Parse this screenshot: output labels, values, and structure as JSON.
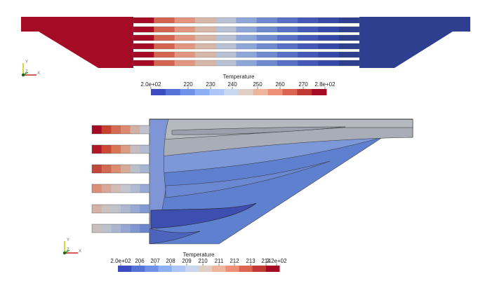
{
  "top_view": {
    "legend": {
      "title": "Temperature",
      "ticks": [
        "2.0e+02",
        "220",
        "230",
        "240",
        "250",
        "260",
        "270",
        "2.8e+02"
      ]
    },
    "axes": {
      "y": "Y",
      "z": "Z",
      "x": "X"
    }
  },
  "bottom_view": {
    "legend": {
      "title": "Temperature",
      "ticks": [
        "2.0e+02",
        "206",
        "207",
        "208",
        "209",
        "210",
        "211",
        "212",
        "213",
        "214",
        "2.2e+02"
      ]
    },
    "axes": {
      "y": "Y",
      "z": "Z",
      "x": "X"
    }
  },
  "colors": {
    "hot": "#a50b24",
    "cold": "#2e3f8f",
    "mid": "#c0c4c8",
    "background": "#ffffff"
  }
}
